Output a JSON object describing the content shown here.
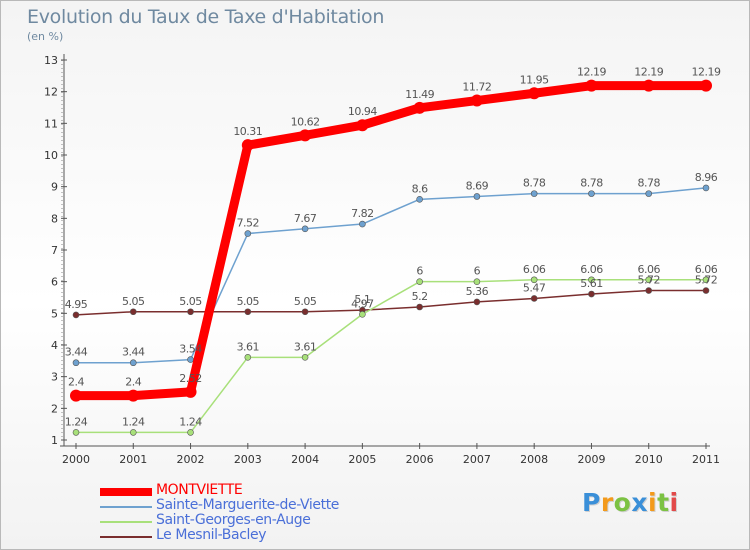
{
  "chart_data": {
    "type": "line",
    "title": "Evolution du Taux de Taxe d'Habitation",
    "subtitle": "(en %)",
    "xlabel": "",
    "ylabel": "",
    "categories": [
      "2000",
      "2001",
      "2002",
      "2003",
      "2004",
      "2005",
      "2006",
      "2007",
      "2008",
      "2009",
      "2010",
      "2011"
    ],
    "ylim": [
      1,
      13
    ],
    "yticks": [
      "1",
      "2",
      "3",
      "4",
      "5",
      "6",
      "7",
      "8",
      "9",
      "10",
      "11",
      "12",
      "13"
    ],
    "grid": false,
    "legend_position": "bottom-left",
    "series": [
      {
        "name": "MONTVIETTE",
        "color": "#ff0000",
        "values": [
          2.4,
          2.4,
          2.52,
          10.31,
          10.62,
          10.94,
          11.49,
          11.72,
          11.95,
          12.19,
          12.19,
          12.19
        ],
        "labels": [
          "2.4",
          "2.4",
          "2.52",
          "10.31",
          "10.62",
          "10.94",
          "11.49",
          "11.72",
          "11.95",
          "12.19",
          "12.19",
          "12.19"
        ]
      },
      {
        "name": "Sainte-Marguerite-de-Viette",
        "color": "#6ea1cf",
        "values": [
          3.44,
          3.44,
          3.54,
          7.52,
          7.67,
          7.82,
          8.6,
          8.69,
          8.78,
          8.78,
          8.78,
          8.96
        ],
        "labels": [
          "3.44",
          "3.44",
          "3.54",
          "7.52",
          "7.67",
          "7.82",
          "8.6",
          "8.69",
          "8.78",
          "8.78",
          "8.78",
          "8.96"
        ]
      },
      {
        "name": "Saint-Georges-en-Auge",
        "color": "#a8e07a",
        "values": [
          1.24,
          1.24,
          1.24,
          3.61,
          3.61,
          4.97,
          6,
          6,
          6.06,
          6.06,
          6.06,
          6.06
        ],
        "labels": [
          "1.24",
          "1.24",
          "1.24",
          "3.61",
          "3.61",
          "4.97",
          "6",
          "6",
          "6.06",
          "6.06",
          "6.06",
          "6.06"
        ]
      },
      {
        "name": "Le Mesnil-Bacley",
        "color": "#7a2e2e",
        "values": [
          4.95,
          5.05,
          5.05,
          5.05,
          5.05,
          5.1,
          5.2,
          5.36,
          5.47,
          5.61,
          5.72,
          5.72
        ],
        "labels": [
          "4.95",
          "5.05",
          "5.05",
          "5.05",
          "5.05",
          "5.1",
          "5.2",
          "5.36",
          "5.47",
          "5.61",
          "5.72",
          "5.72"
        ]
      }
    ]
  },
  "brand": {
    "letters": [
      "P",
      "r",
      "o",
      "x",
      "i",
      "t",
      "i"
    ],
    "colors": [
      "#3a8fd8",
      "#f39a1b",
      "#7cc243",
      "#3a8fd8",
      "#f39a1b",
      "#7cc243",
      "#e24a4a"
    ]
  }
}
